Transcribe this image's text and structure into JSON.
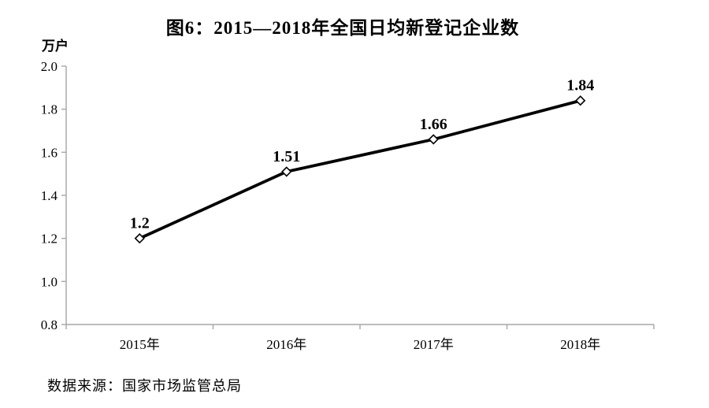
{
  "page": {
    "background": "#ffffff"
  },
  "header": {
    "title": "图6：2015—2018年全国日均新登记企业数"
  },
  "footer": {
    "source_note": "数据来源：国家市场监管总局"
  },
  "colors": {
    "text": "#000000",
    "line": "#000000",
    "axis": "#a6a6a6",
    "marker_fill": "#ffffff",
    "background": "#ffffff"
  },
  "chart_data": {
    "type": "line",
    "title": "图6：2015—2018年全国日均新登记企业数",
    "categories": [
      "2015年",
      "2016年",
      "2017年",
      "2018年"
    ],
    "values": [
      1.2,
      1.51,
      1.66,
      1.84
    ],
    "point_labels": [
      "1.2",
      "1.51",
      "1.66",
      "1.84"
    ],
    "xlabel": "",
    "ylabel": "万户",
    "ylim": [
      0.8,
      2.0
    ],
    "ytick_labels": [
      "2.0",
      "1.8",
      "1.6",
      "1.4",
      "1.2",
      "1.0",
      "0.8"
    ],
    "grid": false,
    "legend": "none",
    "marker": "diamond-open",
    "line_color": "#000000",
    "source_note": "数据来源：国家市场监管总局"
  }
}
